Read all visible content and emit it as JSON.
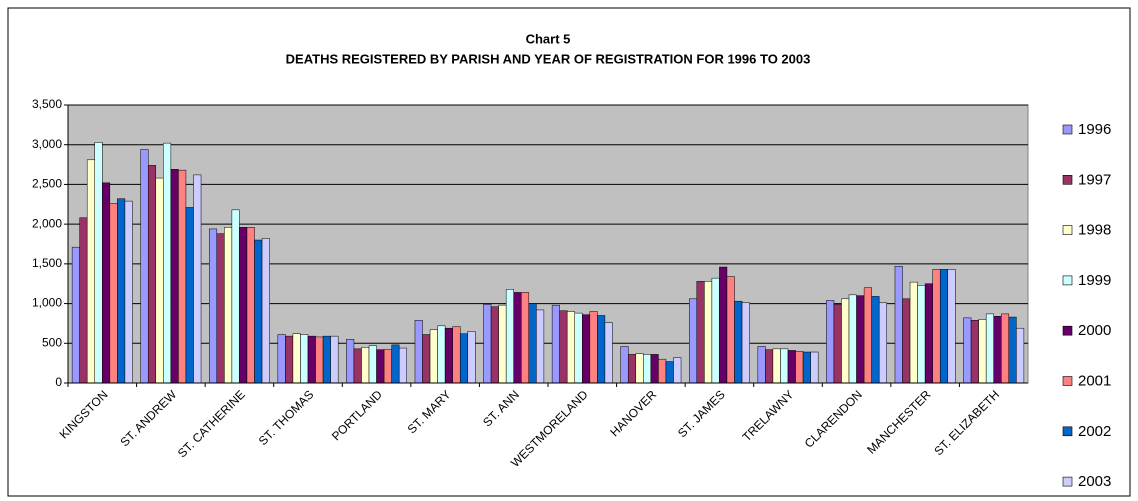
{
  "chart_data": {
    "type": "bar",
    "title": "Chart 5",
    "subtitle": "DEATHS REGISTERED BY PARISH AND YEAR OF REGISTRATION FOR 1996 TO 2003",
    "categories": [
      "KINGSTON",
      "ST. ANDREW",
      "ST. CATHERINE",
      "ST. THOMAS",
      "PORTLAND",
      "ST. MARY",
      "ST. ANN",
      "WESTMORELAND",
      "HANOVER",
      "ST. JAMES",
      "TRELAWNY",
      "CLARENDON",
      "MANCHESTER",
      "ST. ELIZABETH"
    ],
    "series": [
      {
        "name": "1996",
        "color": "#9999ff",
        "values": [
          1710,
          2940,
          1940,
          610,
          550,
          790,
          990,
          980,
          460,
          1060,
          460,
          1040,
          1470,
          820
        ]
      },
      {
        "name": "1997",
        "color": "#993366",
        "values": [
          2080,
          2740,
          1880,
          590,
          430,
          610,
          960,
          910,
          360,
          1280,
          420,
          990,
          1060,
          790
        ]
      },
      {
        "name": "1998",
        "color": "#ffffcc",
        "values": [
          2810,
          2580,
          1960,
          620,
          450,
          670,
          980,
          900,
          370,
          1280,
          430,
          1060,
          1270,
          800
        ]
      },
      {
        "name": "1999",
        "color": "#ccffff",
        "values": [
          3030,
          3020,
          2180,
          610,
          470,
          720,
          1180,
          880,
          360,
          1320,
          430,
          1110,
          1230,
          870
        ]
      },
      {
        "name": "2000",
        "color": "#660066",
        "values": [
          2520,
          2690,
          1960,
          590,
          420,
          690,
          1140,
          860,
          360,
          1460,
          410,
          1100,
          1250,
          840
        ]
      },
      {
        "name": "2001",
        "color": "#ff8080",
        "values": [
          2260,
          2680,
          1960,
          580,
          420,
          710,
          1140,
          900,
          300,
          1340,
          400,
          1200,
          1430,
          870
        ]
      },
      {
        "name": "2002",
        "color": "#0066cc",
        "values": [
          2320,
          2210,
          1800,
          590,
          480,
          620,
          1000,
          850,
          270,
          1030,
          390,
          1090,
          1430,
          830
        ]
      },
      {
        "name": "2003",
        "color": "#ccccff",
        "values": [
          2290,
          2620,
          1820,
          590,
          440,
          650,
          920,
          760,
          320,
          1010,
          390,
          1010,
          1430,
          690
        ]
      }
    ],
    "ylim": [
      0,
      3500
    ],
    "yticks": [
      0,
      500,
      {
        "value": 1000,
        "label": "1,000"
      },
      {
        "value": 1500,
        "label": "1,500"
      },
      {
        "value": 2000,
        "label": "2,000"
      },
      {
        "value": 2500,
        "label": "2,500"
      },
      {
        "value": 3000,
        "label": "3,000"
      },
      {
        "value": 3500,
        "label": "3,500"
      }
    ],
    "grid": true,
    "legend": "right"
  }
}
